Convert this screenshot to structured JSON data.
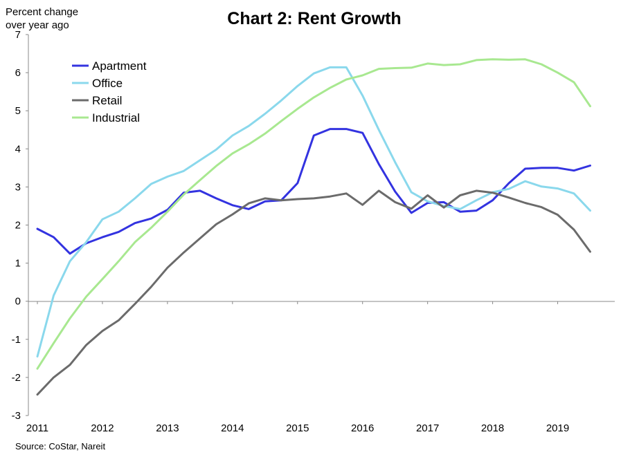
{
  "chart_data": {
    "type": "line",
    "title": "Chart 2: Rent Growth",
    "ylabel": [
      "Percent change",
      "over year ago"
    ],
    "xlabel": "",
    "source": "Source: CoStar, Nareit",
    "ylim": [
      -3,
      7
    ],
    "yticks": [
      7,
      6,
      5,
      4,
      3,
      2,
      1,
      0,
      -1,
      -2,
      -3
    ],
    "ytick_labels": [
      "7",
      "6",
      "5",
      "4",
      "3",
      "2",
      "1",
      "0",
      "-1",
      "-2",
      "-3"
    ],
    "xlim": [
      2011,
      2019.75
    ],
    "xticks": [
      2011,
      2012,
      2013,
      2014,
      2015,
      2016,
      2017,
      2018,
      2019
    ],
    "xtick_labels": [
      "2011",
      "2012",
      "2013",
      "2014",
      "2015",
      "2016",
      "2017",
      "2018",
      "2019"
    ],
    "grid": false,
    "legend_position": "top-left",
    "x": [
      2011.0,
      2011.25,
      2011.5,
      2011.75,
      2012.0,
      2012.25,
      2012.5,
      2012.75,
      2013.0,
      2013.25,
      2013.5,
      2013.75,
      2014.0,
      2014.25,
      2014.5,
      2014.75,
      2015.0,
      2015.25,
      2015.5,
      2015.75,
      2016.0,
      2016.25,
      2016.5,
      2016.75,
      2017.0,
      2017.25,
      2017.5,
      2017.75,
      2018.0,
      2018.25,
      2018.5,
      2018.75,
      2019.0,
      2019.25,
      2019.5
    ],
    "series": [
      {
        "name": "Apartment",
        "color": "#3333e0",
        "values": [
          1.9,
          1.68,
          1.25,
          1.52,
          1.68,
          1.82,
          2.05,
          2.17,
          2.4,
          2.85,
          2.9,
          2.7,
          2.52,
          2.42,
          2.62,
          2.65,
          3.1,
          4.35,
          4.52,
          4.52,
          4.42,
          3.6,
          2.88,
          2.32,
          2.58,
          2.6,
          2.35,
          2.38,
          2.65,
          3.1,
          3.48,
          3.5,
          3.5,
          3.43,
          3.56
        ]
      },
      {
        "name": "Office",
        "color": "#8ad8ec",
        "values": [
          -1.45,
          0.15,
          1.05,
          1.55,
          2.15,
          2.35,
          2.7,
          3.08,
          3.27,
          3.42,
          3.7,
          3.98,
          4.35,
          4.6,
          4.92,
          5.27,
          5.65,
          5.98,
          6.14,
          6.14,
          5.4,
          4.5,
          3.65,
          2.86,
          2.62,
          2.5,
          2.42,
          2.65,
          2.86,
          2.95,
          3.15,
          3.01,
          2.96,
          2.83,
          2.38
        ]
      },
      {
        "name": "Retail",
        "color": "#6b6b6b",
        "values": [
          -2.45,
          -2.0,
          -1.67,
          -1.15,
          -0.78,
          -0.5,
          -0.07,
          0.38,
          0.88,
          1.28,
          1.65,
          2.02,
          2.28,
          2.57,
          2.7,
          2.65,
          2.68,
          2.7,
          2.75,
          2.83,
          2.53,
          2.9,
          2.6,
          2.43,
          2.78,
          2.46,
          2.78,
          2.9,
          2.85,
          2.72,
          2.58,
          2.47,
          2.27,
          1.88,
          1.3
        ]
      },
      {
        "name": "Industrial",
        "color": "#a8e890",
        "values": [
          -1.77,
          -1.1,
          -0.45,
          0.12,
          0.58,
          1.05,
          1.55,
          1.93,
          2.35,
          2.8,
          3.18,
          3.55,
          3.88,
          4.12,
          4.4,
          4.73,
          5.05,
          5.35,
          5.6,
          5.82,
          5.93,
          6.1,
          6.12,
          6.13,
          6.24,
          6.2,
          6.22,
          6.33,
          6.35,
          6.34,
          6.35,
          6.22,
          6.0,
          5.75,
          5.12
        ]
      }
    ]
  }
}
